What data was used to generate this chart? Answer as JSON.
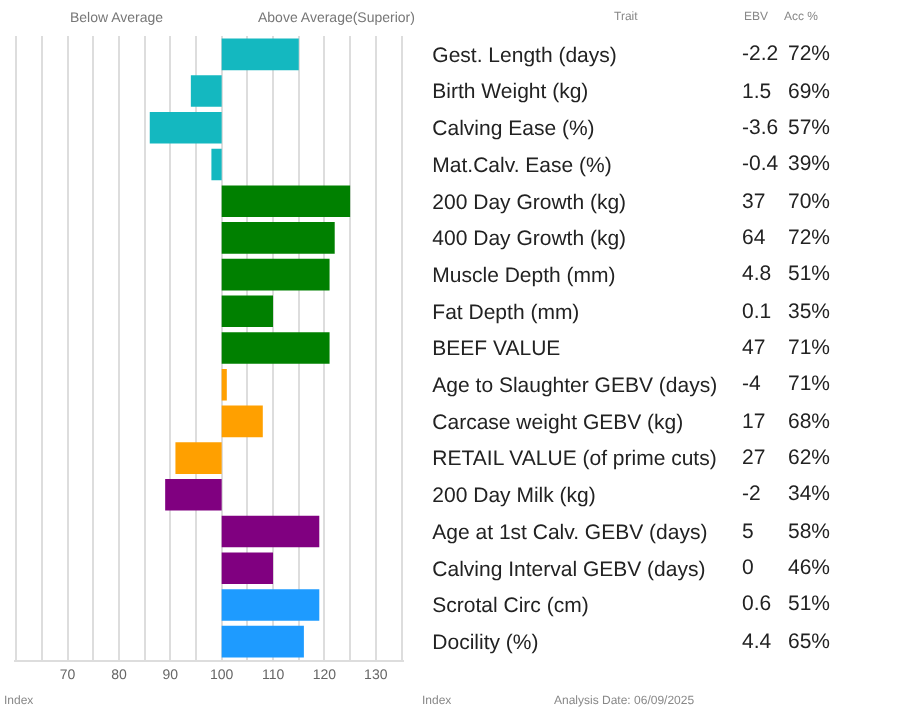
{
  "chart_data": {
    "type": "bar",
    "orientation": "horizontal",
    "categories": [
      "Gest. Length (days)",
      "Birth Weight (kg)",
      "Calving Ease (%)",
      "Mat.Calv. Ease (%)",
      "200 Day Growth (kg)",
      "400 Day Growth (kg)",
      "Muscle Depth (mm)",
      "Fat Depth (mm)",
      "BEEF VALUE",
      "Age to Slaughter GEBV (days)",
      "Carcase weight GEBV (kg)",
      "RETAIL VALUE (of prime cuts)",
      "200 Day Milk (kg)",
      "Age at 1st Calv. GEBV (days)",
      "Calving Interval GEBV (days)",
      "Scrotal Circ (cm)",
      "Docility (%)"
    ],
    "base": [
      100,
      100,
      100,
      100,
      100,
      100,
      100,
      100,
      100,
      100,
      100,
      100,
      100,
      100,
      100,
      100,
      100
    ],
    "values": [
      15,
      -6,
      -14,
      -2,
      25,
      22,
      21,
      10,
      21,
      1,
      8,
      -9,
      -11,
      19,
      10,
      19,
      16
    ],
    "colors": [
      "#14b8c0",
      "#14b8c0",
      "#14b8c0",
      "#14b8c0",
      "#008000",
      "#008000",
      "#008000",
      "#008000",
      "#008000",
      "#ffa000",
      "#ffa000",
      "#ffa000",
      "#800080",
      "#800080",
      "#800080",
      "#1e9bff",
      "#1e9bff"
    ],
    "xlim": [
      59.5,
      135.5
    ],
    "xticks": [
      {
        "value": 60,
        "label": null
      },
      {
        "value": 65,
        "label": null
      },
      70,
      {
        "value": 75,
        "label": null
      },
      80,
      {
        "value": 85,
        "label": null
      },
      90,
      {
        "value": 95,
        "label": null
      },
      100,
      {
        "value": 105,
        "label": null
      },
      110,
      {
        "value": 115,
        "label": null
      },
      120,
      {
        "value": 125,
        "label": null
      },
      130,
      {
        "value": 135,
        "label": null
      }
    ],
    "grid": "x",
    "annotations": [
      "Below Average",
      "Above Average(Superior)",
      "Trait",
      "EBV",
      "Acc %",
      "Index",
      "Index",
      "Analysis Date: 06/09/2025",
      "-2.2",
      "1.5",
      "-3.6",
      "-0.4",
      "37",
      "64",
      "4.8",
      "0.1",
      "47",
      "-4",
      "17",
      "27",
      "-2",
      "5",
      "0",
      "0.6",
      "4.4",
      "72%",
      "69%",
      "57%",
      "39%",
      "70%",
      "72%",
      "51%",
      "35%",
      "71%",
      "71%",
      "68%",
      "62%",
      "34%",
      "58%",
      "46%",
      "51%",
      "65%"
    ]
  }
}
